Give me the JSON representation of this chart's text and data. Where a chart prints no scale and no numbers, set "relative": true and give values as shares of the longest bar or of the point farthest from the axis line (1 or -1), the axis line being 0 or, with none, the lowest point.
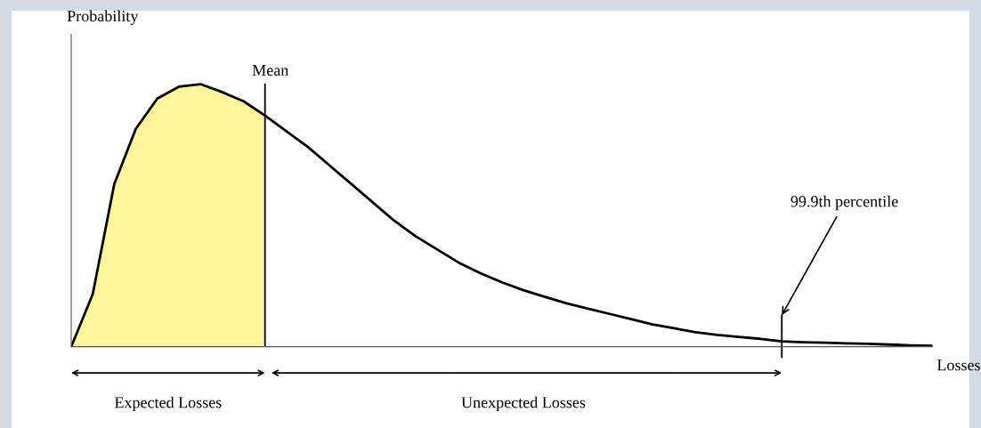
{
  "chart_data": {
    "type": "line",
    "relative": true,
    "ylabel": "Probability",
    "xlabel": "Losses",
    "categories": [
      null,
      null,
      null,
      null,
      null,
      null,
      null,
      null,
      null,
      null,
      null,
      null,
      null,
      null,
      null,
      null,
      null,
      null,
      null,
      null,
      null,
      null,
      null,
      null,
      null,
      null,
      null,
      null,
      null,
      null,
      null,
      null,
      null,
      null,
      null,
      null,
      null,
      null,
      null,
      null,
      null
    ],
    "series": [
      {
        "color": "#000000",
        "values": [
          0,
          0.2,
          0.62,
          0.83,
          0.945,
          0.99,
          1,
          0.97,
          0.935,
          0.88,
          0.82,
          0.76,
          0.69,
          0.62,
          0.55,
          0.48,
          0.42,
          0.37,
          0.32,
          0.28,
          0.245,
          0.215,
          0.19,
          0.165,
          0.145,
          0.125,
          0.105,
          0.085,
          0.07,
          0.055,
          0.045,
          0.037,
          0.03,
          0.02,
          0.017,
          0.015,
          0.013,
          0.011,
          0.008,
          0.005,
          0.003
        ]
      }
    ],
    "annotations": [
      "Mean",
      "99.9th percentile",
      "Expected Losses",
      "Unexpected Losses"
    ]
  }
}
